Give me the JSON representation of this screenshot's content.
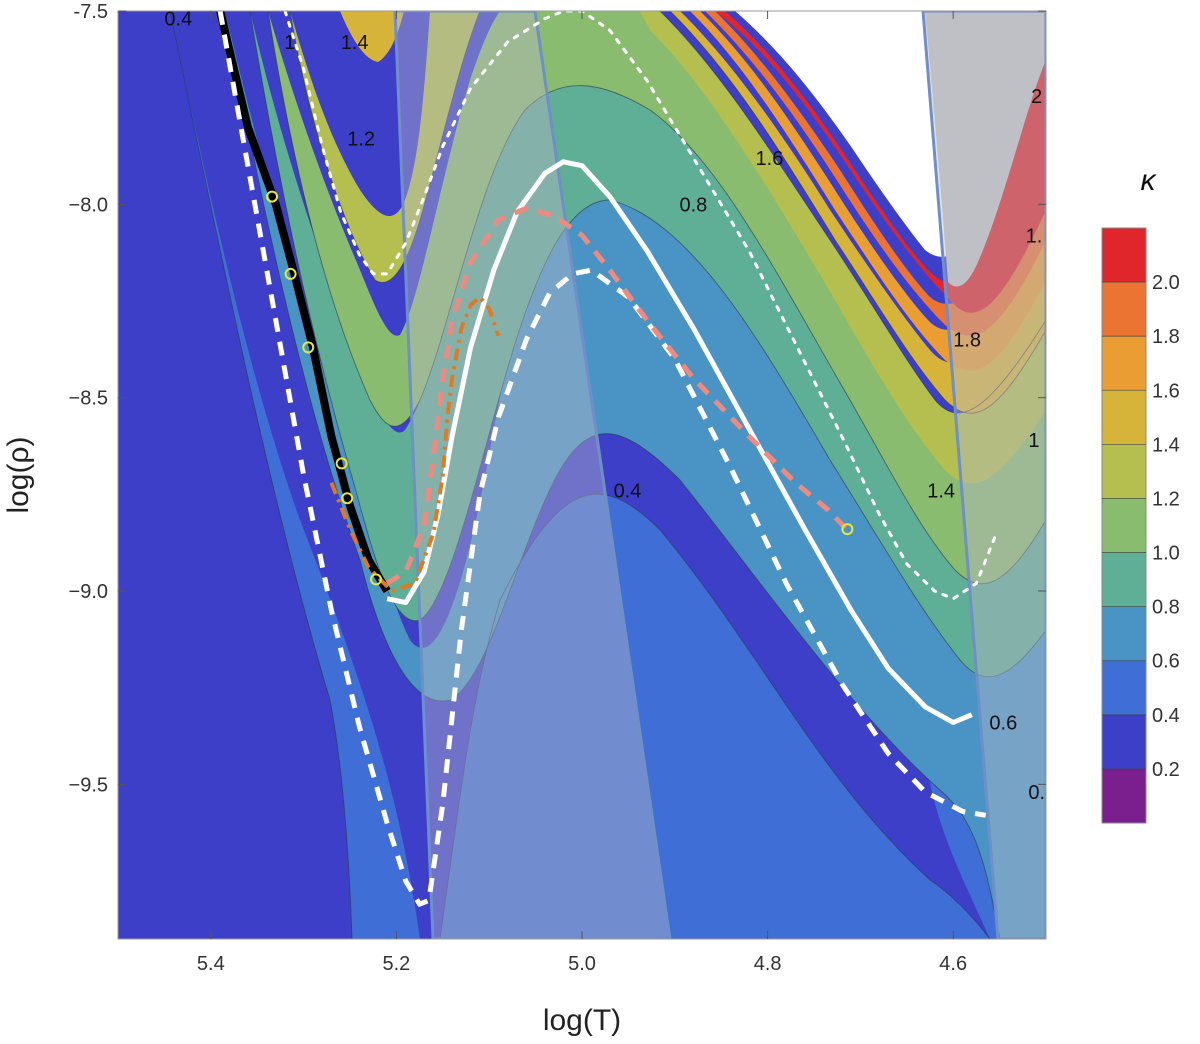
{
  "chart_data": {
    "type": "contour",
    "xlabel": "log(T)",
    "ylabel": "log(ρ)",
    "xlim": [
      5.5,
      4.5
    ],
    "ylim": [
      -9.9,
      -7.5
    ],
    "x_reversed": true,
    "x_ticks": [
      5.4,
      5.2,
      5.0,
      4.8,
      4.6
    ],
    "x_tick_labels": [
      "5.4",
      "5.2",
      "5.0",
      "4.8",
      "4.6"
    ],
    "y_ticks": [
      -7.5,
      -8.0,
      -8.5,
      -9.0,
      -9.5
    ],
    "y_tick_labels": [
      "-7.5",
      "−8.0",
      "−8.5",
      "−9.0",
      "−9.5"
    ],
    "colorbar": {
      "title": "κ",
      "levels": [
        0.0,
        0.2,
        0.4,
        0.6,
        0.8,
        1.0,
        1.2,
        1.4,
        1.6,
        1.8,
        2.0,
        2.2
      ],
      "tick_values": [
        0.2,
        0.4,
        0.6,
        0.8,
        1.0,
        1.2,
        1.4,
        1.6,
        1.8,
        2.0
      ],
      "tick_labels": [
        "0.2",
        "0.4",
        "0.6",
        "0.8",
        "1.0",
        "1.2",
        "1.4",
        "1.6",
        "1.8",
        "2.0"
      ],
      "colors": [
        "#7b1f8e",
        "#3d3fc8",
        "#3f6fd6",
        "#4994c4",
        "#5fae96",
        "#8abc6f",
        "#b4bf4f",
        "#d6b43a",
        "#e99d33",
        "#ec7433",
        "#e0262a"
      ]
    },
    "contour_labels": [
      {
        "text": "0.4",
        "x": 5.435,
        "y": -7.52
      },
      {
        "text": "1",
        "x": 5.315,
        "y": -7.58
      },
      {
        "text": "1.4",
        "x": 5.245,
        "y": -7.58
      },
      {
        "text": "1.2",
        "x": 5.238,
        "y": -7.83
      },
      {
        "text": "1.6",
        "x": 4.798,
        "y": -7.88
      },
      {
        "text": "0.8",
        "x": 4.88,
        "y": -8.0
      },
      {
        "text": "2",
        "x": 4.51,
        "y": -7.72
      },
      {
        "text": "1.",
        "x": 4.513,
        "y": -8.08
      },
      {
        "text": "1.8",
        "x": 4.585,
        "y": -8.35
      },
      {
        "text": "1",
        "x": 4.513,
        "y": -8.61
      },
      {
        "text": "1.4",
        "x": 4.613,
        "y": -8.74
      },
      {
        "text": "0.4",
        "x": 4.951,
        "y": -8.74
      },
      {
        "text": "0.6",
        "x": 4.546,
        "y": -9.34
      },
      {
        "text": "0.",
        "x": 4.51,
        "y": -9.52
      }
    ],
    "opaque_regions": [
      "unshaded white region (no data) upper right",
      "grey region near log(T)≈4.6"
    ],
    "shaded_bands": [
      {
        "from_x_top": 5.22,
        "from_x_bottom": 5.165,
        "to_x_top": 5.04,
        "to_x_bottom": 4.915
      },
      {
        "from_x_top": 4.605,
        "from_x_bottom": 4.555,
        "to_x_top": 4.5,
        "to_x_bottom": 4.5
      }
    ],
    "series": [
      {
        "name": "black solid track",
        "style": "solid",
        "color": "#000000",
        "x": [
          5.39,
          5.36,
          5.33,
          5.31,
          5.29,
          5.27,
          5.25,
          5.23,
          5.21
        ],
        "y": [
          -7.5,
          -7.8,
          -8.0,
          -8.18,
          -8.37,
          -8.6,
          -8.78,
          -8.92,
          -9.0
        ]
      },
      {
        "name": "white solid track",
        "style": "solid",
        "color": "#ffffff",
        "x": [
          5.21,
          5.19,
          5.17,
          5.155,
          5.14,
          5.12,
          5.095,
          5.07,
          5.04,
          5.02,
          5.0,
          4.97,
          4.93,
          4.88,
          4.82,
          4.76,
          4.71,
          4.67,
          4.63,
          4.6,
          4.58
        ],
        "y": [
          -9.02,
          -9.03,
          -8.95,
          -8.8,
          -8.6,
          -8.37,
          -8.17,
          -8.02,
          -7.92,
          -7.89,
          -7.9,
          -7.98,
          -8.12,
          -8.32,
          -8.58,
          -8.84,
          -9.05,
          -9.2,
          -9.3,
          -9.34,
          -9.32
        ]
      },
      {
        "name": "white dashed (thick) track",
        "style": "dashed",
        "color": "#ffffff",
        "x": [
          5.39,
          5.36,
          5.33,
          5.3,
          5.27,
          5.24,
          5.21,
          5.19,
          5.175,
          5.165,
          5.15,
          5.13,
          5.11,
          5.09,
          5.06,
          5.035,
          5.01,
          4.99,
          4.95,
          4.9,
          4.84,
          4.78,
          4.72,
          4.67,
          4.63,
          4.59,
          4.565
        ],
        "y": [
          -7.5,
          -7.9,
          -8.3,
          -8.7,
          -9.05,
          -9.35,
          -9.6,
          -9.75,
          -9.81,
          -9.8,
          -9.55,
          -9.1,
          -8.75,
          -8.55,
          -8.35,
          -8.23,
          -8.18,
          -8.17,
          -8.24,
          -8.4,
          -8.68,
          -8.98,
          -9.24,
          -9.42,
          -9.52,
          -9.57,
          -9.58
        ]
      },
      {
        "name": "white dotted track",
        "style": "dotted",
        "color": "#ffffff",
        "x": [
          5.32,
          5.3,
          5.28,
          5.26,
          5.24,
          5.225,
          5.21,
          5.19,
          5.17,
          5.15,
          5.12,
          5.08,
          5.04,
          5.02,
          5.0,
          4.97,
          4.93,
          4.88,
          4.82,
          4.77,
          4.72,
          4.68,
          4.65,
          4.62,
          4.6,
          4.575,
          4.555
        ],
        "y": [
          -7.5,
          -7.65,
          -7.85,
          -8.02,
          -8.13,
          -8.18,
          -8.18,
          -8.1,
          -7.98,
          -7.85,
          -7.7,
          -7.58,
          -7.52,
          -7.5,
          -7.5,
          -7.55,
          -7.68,
          -7.88,
          -8.12,
          -8.36,
          -8.6,
          -8.8,
          -8.93,
          -9.0,
          -9.02,
          -8.98,
          -8.86
        ]
      },
      {
        "name": "orange dash-dot track",
        "style": "dashdot",
        "color": "#e07a1f",
        "x": [
          5.27,
          5.25,
          5.23,
          5.205,
          5.18,
          5.16,
          5.15,
          5.145,
          5.14,
          5.13,
          5.12,
          5.11,
          5.1,
          5.09
        ],
        "y": [
          -8.72,
          -8.84,
          -8.94,
          -9.0,
          -8.98,
          -8.85,
          -8.7,
          -8.55,
          -8.45,
          -8.32,
          -8.26,
          -8.24,
          -8.27,
          -8.34
        ]
      },
      {
        "name": "salmon dashed track",
        "style": "dashed",
        "color": "#ee8a80",
        "x": [
          5.21,
          5.19,
          5.17,
          5.16,
          5.15,
          5.14,
          5.12,
          5.09,
          5.06,
          5.03,
          5.0,
          4.97,
          4.93,
          4.88,
          4.82,
          4.77,
          4.735,
          4.715
        ],
        "y": [
          -8.98,
          -8.95,
          -8.83,
          -8.65,
          -8.45,
          -8.3,
          -8.15,
          -8.04,
          -8.01,
          -8.03,
          -8.08,
          -8.17,
          -8.3,
          -8.45,
          -8.6,
          -8.72,
          -8.79,
          -8.84
        ]
      }
    ],
    "markers": {
      "name": "yellow circles",
      "color": "#e8e838",
      "x": [
        5.334,
        5.314,
        5.295,
        5.259,
        5.253,
        5.222,
        4.714
      ],
      "y": [
        -7.98,
        -8.18,
        -8.37,
        -8.67,
        -8.76,
        -8.97,
        -8.84
      ]
    }
  }
}
